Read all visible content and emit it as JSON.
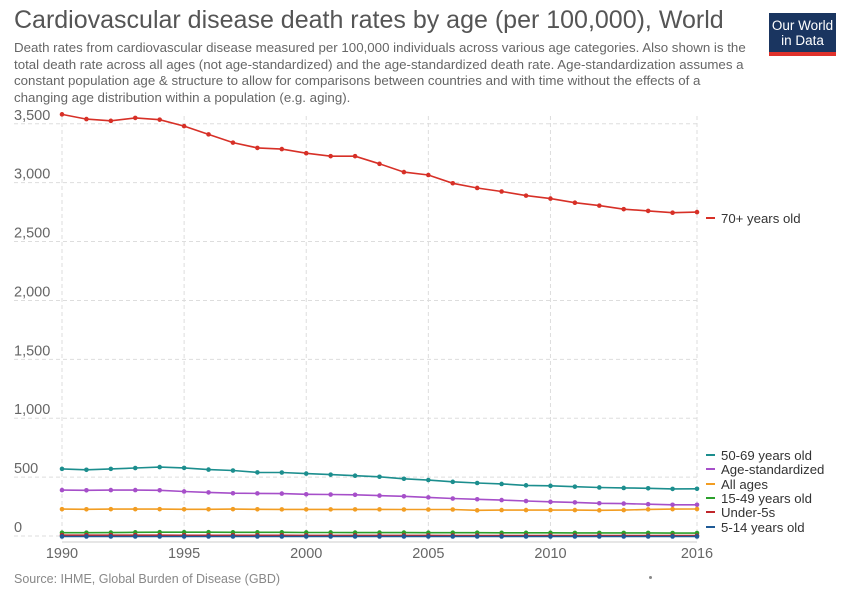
{
  "header": {
    "title": "Cardiovascular disease death rates by age (per 100,000), World",
    "subtitle": "Death rates from cardiovascular disease measured per 100,000 individuals across various age categories. Also shown is the total death rate across all ages (not age-standardized) and the age-standardized death rate. Age-standardization assumes a constant population age & structure to allow for comparisons between countries and with time without the effects of a changing age distribution within a population (e.g. aging).",
    "logo_line1": "Our World",
    "logo_line2": "in Data"
  },
  "footer": {
    "source": "Source: IHME, Global Burden of Disease (GBD)"
  },
  "chart_data": {
    "type": "line",
    "x": [
      1990,
      1991,
      1992,
      1993,
      1994,
      1995,
      1996,
      1997,
      1998,
      1999,
      2000,
      2001,
      2002,
      2003,
      2004,
      2005,
      2006,
      2007,
      2008,
      2009,
      2010,
      2011,
      2012,
      2013,
      2014,
      2015,
      2016
    ],
    "xticks": [
      1990,
      1995,
      2000,
      2005,
      2010,
      2016
    ],
    "yticks": [
      0,
      500,
      1000,
      1500,
      2000,
      2500,
      3000,
      3500
    ],
    "ylim": [
      0,
      3600
    ],
    "grid": true,
    "legend_position": "right",
    "series": [
      {
        "name": "70+ years old",
        "color": "#d73027",
        "values": [
          3580,
          3540,
          3525,
          3550,
          3535,
          3480,
          3410,
          3340,
          3295,
          3285,
          3250,
          3225,
          3225,
          3160,
          3090,
          3065,
          2995,
          2955,
          2925,
          2890,
          2865,
          2830,
          2805,
          2775,
          2760,
          2745,
          2750
        ]
      },
      {
        "name": "50-69 years old",
        "color": "#1c8e8e",
        "values": [
          570,
          562,
          570,
          577,
          585,
          578,
          564,
          556,
          540,
          539,
          530,
          521,
          512,
          503,
          486,
          475,
          460,
          450,
          442,
          430,
          426,
          419,
          412,
          408,
          405,
          400,
          401
        ]
      },
      {
        "name": "Age-standardized",
        "color": "#a64fc9",
        "values": [
          390,
          388,
          390,
          390,
          388,
          378,
          370,
          363,
          362,
          360,
          354,
          352,
          350,
          343,
          337,
          328,
          318,
          312,
          305,
          297,
          290,
          285,
          278,
          275,
          270,
          265,
          265
        ]
      },
      {
        "name": "All ages",
        "color": "#f29d22",
        "values": [
          228,
          227,
          228,
          228,
          228,
          227,
          227,
          228,
          227,
          226,
          226,
          226,
          226,
          226,
          225,
          225,
          225,
          218,
          220,
          220,
          220,
          220,
          218,
          220,
          226,
          228,
          229
        ]
      },
      {
        "name": "15-49 years old",
        "color": "#2ca02c",
        "values": [
          28,
          28,
          29,
          31,
          32,
          32,
          32,
          31,
          31,
          31,
          30,
          30,
          29,
          29,
          29,
          28,
          28,
          28,
          27,
          27,
          27,
          26,
          26,
          26,
          26,
          25,
          25
        ]
      },
      {
        "name": "Under-5s",
        "color": "#c0262b",
        "values": [
          7,
          7,
          7,
          7,
          7,
          6,
          6,
          6,
          6,
          6,
          5,
          5,
          5,
          5,
          5,
          5,
          4,
          4,
          4,
          4,
          4,
          4,
          4,
          3,
          3,
          3,
          3
        ]
      },
      {
        "name": "5-14 years old",
        "color": "#1f5a96",
        "values": [
          -4,
          -4,
          -4,
          -4,
          -4,
          -4,
          -4,
          -4,
          -4,
          -4,
          -4,
          -4,
          -4,
          -4,
          -4,
          -4,
          -4,
          -4,
          -4,
          -4,
          -4,
          -4,
          -4,
          -4,
          -4,
          -4,
          -4
        ]
      }
    ]
  }
}
